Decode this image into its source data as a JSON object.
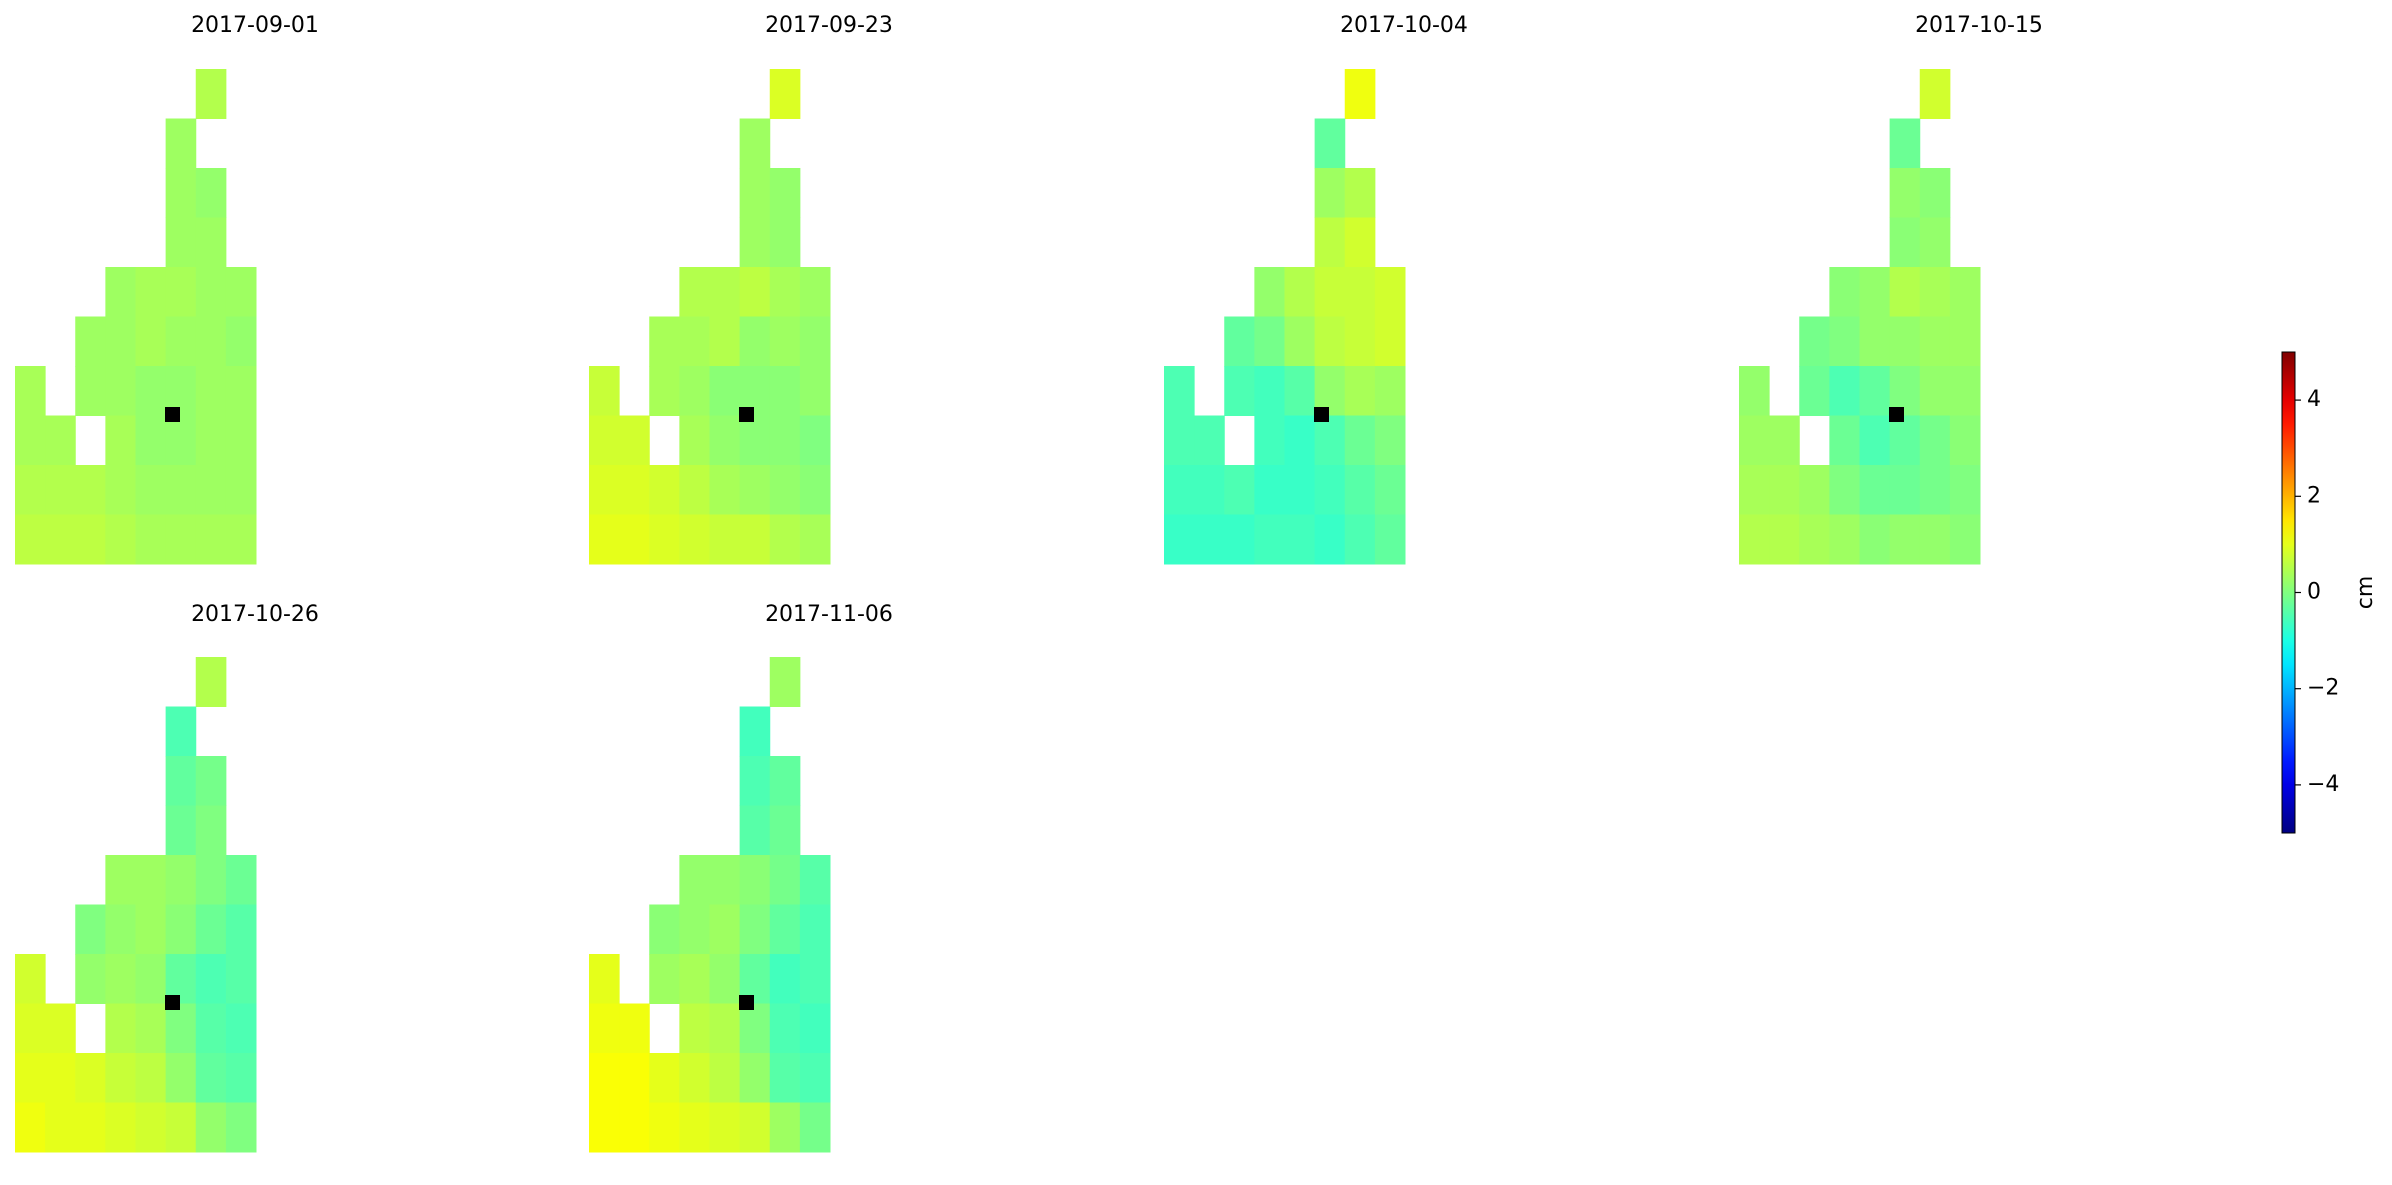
{
  "chart_data": {
    "type": "heatmap",
    "colormap": "jet",
    "panels": [
      {
        "title": "2017-09-01",
        "values": [
          [
            null,
            null,
            null,
            null,
            null,
            null,
            0.5,
            null
          ],
          [
            null,
            null,
            null,
            null,
            null,
            0.3,
            null,
            null
          ],
          [
            null,
            null,
            null,
            null,
            null,
            0.3,
            0.2,
            null
          ],
          [
            null,
            null,
            null,
            null,
            null,
            0.3,
            0.3,
            null
          ],
          [
            null,
            null,
            null,
            0.3,
            0.4,
            0.4,
            0.3,
            0.3
          ],
          [
            null,
            null,
            0.3,
            0.3,
            0.4,
            0.3,
            0.3,
            0.2
          ],
          [
            0.4,
            null,
            0.3,
            0.3,
            0.2,
            0.2,
            0.3,
            0.3
          ],
          [
            0.4,
            0.4,
            null,
            0.4,
            0.2,
            0.2,
            0.3,
            0.3
          ],
          [
            0.5,
            0.5,
            0.5,
            0.4,
            0.3,
            0.3,
            0.3,
            0.3
          ],
          [
            0.6,
            0.6,
            0.6,
            0.5,
            0.4,
            0.4,
            0.4,
            0.4
          ]
        ]
      },
      {
        "title": "2017-09-23",
        "values": [
          [
            null,
            null,
            null,
            null,
            null,
            null,
            0.9,
            null
          ],
          [
            null,
            null,
            null,
            null,
            null,
            0.3,
            null,
            null
          ],
          [
            null,
            null,
            null,
            null,
            null,
            0.3,
            0.2,
            null
          ],
          [
            null,
            null,
            null,
            null,
            null,
            0.3,
            0.2,
            null
          ],
          [
            null,
            null,
            null,
            0.5,
            0.5,
            0.6,
            0.4,
            0.3
          ],
          [
            null,
            null,
            0.4,
            0.4,
            0.5,
            0.2,
            0.3,
            0.2
          ],
          [
            0.7,
            null,
            0.4,
            0.3,
            0.1,
            0.1,
            0.1,
            0.2
          ],
          [
            0.8,
            0.8,
            null,
            0.4,
            0.2,
            0.1,
            0.1,
            0.0
          ],
          [
            0.9,
            0.9,
            0.8,
            0.6,
            0.4,
            0.3,
            0.2,
            0.1
          ],
          [
            1.0,
            1.0,
            0.9,
            0.8,
            0.7,
            0.7,
            0.5,
            0.4
          ]
        ]
      },
      {
        "title": "2017-10-04",
        "values": [
          [
            null,
            null,
            null,
            null,
            null,
            null,
            1.1,
            null
          ],
          [
            null,
            null,
            null,
            null,
            null,
            -0.3,
            null,
            null
          ],
          [
            null,
            null,
            null,
            null,
            null,
            0.3,
            0.5,
            null
          ],
          [
            null,
            null,
            null,
            null,
            null,
            0.6,
            0.8,
            null
          ],
          [
            null,
            null,
            null,
            0.2,
            0.5,
            0.7,
            0.7,
            0.8
          ],
          [
            null,
            null,
            -0.3,
            -0.1,
            0.3,
            0.6,
            0.7,
            0.8
          ],
          [
            -0.5,
            null,
            -0.5,
            -0.6,
            -0.4,
            0.2,
            0.4,
            0.3
          ],
          [
            -0.5,
            -0.5,
            null,
            -0.6,
            -0.7,
            -0.5,
            -0.2,
            0.0
          ],
          [
            -0.6,
            -0.6,
            -0.5,
            -0.7,
            -0.7,
            -0.6,
            -0.4,
            -0.2
          ],
          [
            -0.7,
            -0.7,
            -0.7,
            -0.6,
            -0.6,
            -0.7,
            -0.5,
            -0.3
          ]
        ]
      },
      {
        "title": "2017-10-15",
        "values": [
          [
            null,
            null,
            null,
            null,
            null,
            null,
            0.8,
            null
          ],
          [
            null,
            null,
            null,
            null,
            null,
            -0.2,
            null,
            null
          ],
          [
            null,
            null,
            null,
            null,
            null,
            0.2,
            0.1,
            null
          ],
          [
            null,
            null,
            null,
            null,
            null,
            0.1,
            0.2,
            null
          ],
          [
            null,
            null,
            null,
            0.1,
            0.2,
            0.5,
            0.4,
            0.3
          ],
          [
            null,
            null,
            -0.1,
            0.0,
            0.2,
            0.2,
            0.3,
            0.3
          ],
          [
            0.2,
            null,
            -0.2,
            -0.5,
            -0.3,
            0.0,
            0.2,
            0.2
          ],
          [
            0.3,
            0.3,
            null,
            -0.2,
            -0.5,
            -0.3,
            -0.1,
            0.1
          ],
          [
            0.4,
            0.4,
            0.3,
            0.0,
            -0.2,
            -0.2,
            -0.1,
            0.0
          ],
          [
            0.5,
            0.5,
            0.4,
            0.3,
            0.1,
            0.2,
            0.2,
            0.1
          ]
        ]
      },
      {
        "title": "2017-10-26",
        "values": [
          [
            null,
            null,
            null,
            null,
            null,
            null,
            0.5,
            null
          ],
          [
            null,
            null,
            null,
            null,
            null,
            -0.5,
            null,
            null
          ],
          [
            null,
            null,
            null,
            null,
            null,
            -0.3,
            -0.1,
            null
          ],
          [
            null,
            null,
            null,
            null,
            null,
            -0.2,
            0.0,
            null
          ],
          [
            null,
            null,
            null,
            0.3,
            0.3,
            0.2,
            0.0,
            -0.2
          ],
          [
            null,
            null,
            0.0,
            0.2,
            0.3,
            0.1,
            -0.2,
            -0.4
          ],
          [
            0.8,
            null,
            0.2,
            0.3,
            0.2,
            -0.3,
            -0.5,
            -0.4
          ],
          [
            0.9,
            0.9,
            null,
            0.5,
            0.4,
            0.0,
            -0.4,
            -0.5
          ],
          [
            1.0,
            1.0,
            0.9,
            0.7,
            0.6,
            0.2,
            -0.3,
            -0.4
          ],
          [
            1.1,
            1.0,
            1.0,
            0.9,
            0.8,
            0.7,
            0.2,
            0.0
          ]
        ]
      },
      {
        "title": "2017-11-06",
        "values": [
          [
            null,
            null,
            null,
            null,
            null,
            null,
            0.3,
            null
          ],
          [
            null,
            null,
            null,
            null,
            null,
            -0.6,
            null,
            null
          ],
          [
            null,
            null,
            null,
            null,
            null,
            -0.5,
            -0.3,
            null
          ],
          [
            null,
            null,
            null,
            null,
            null,
            -0.4,
            -0.2,
            null
          ],
          [
            null,
            null,
            null,
            0.2,
            0.2,
            0.1,
            -0.1,
            -0.4
          ],
          [
            null,
            null,
            0.1,
            0.2,
            0.3,
            0.0,
            -0.3,
            -0.5
          ],
          [
            1.0,
            null,
            0.3,
            0.4,
            0.2,
            -0.3,
            -0.6,
            -0.5
          ],
          [
            1.1,
            1.1,
            null,
            0.6,
            0.5,
            0.0,
            -0.5,
            -0.6
          ],
          [
            1.2,
            1.2,
            1.0,
            0.8,
            0.6,
            0.2,
            -0.4,
            -0.5
          ],
          [
            1.2,
            1.2,
            1.1,
            1.0,
            0.9,
            0.8,
            0.3,
            -0.1
          ]
        ]
      }
    ],
    "colorbar": {
      "label": "cm",
      "lim": [
        -5,
        5
      ],
      "ticks": [
        {
          "value": -4,
          "label": "−4"
        },
        {
          "value": -2,
          "label": "−2"
        },
        0,
        2,
        4
      ]
    }
  }
}
